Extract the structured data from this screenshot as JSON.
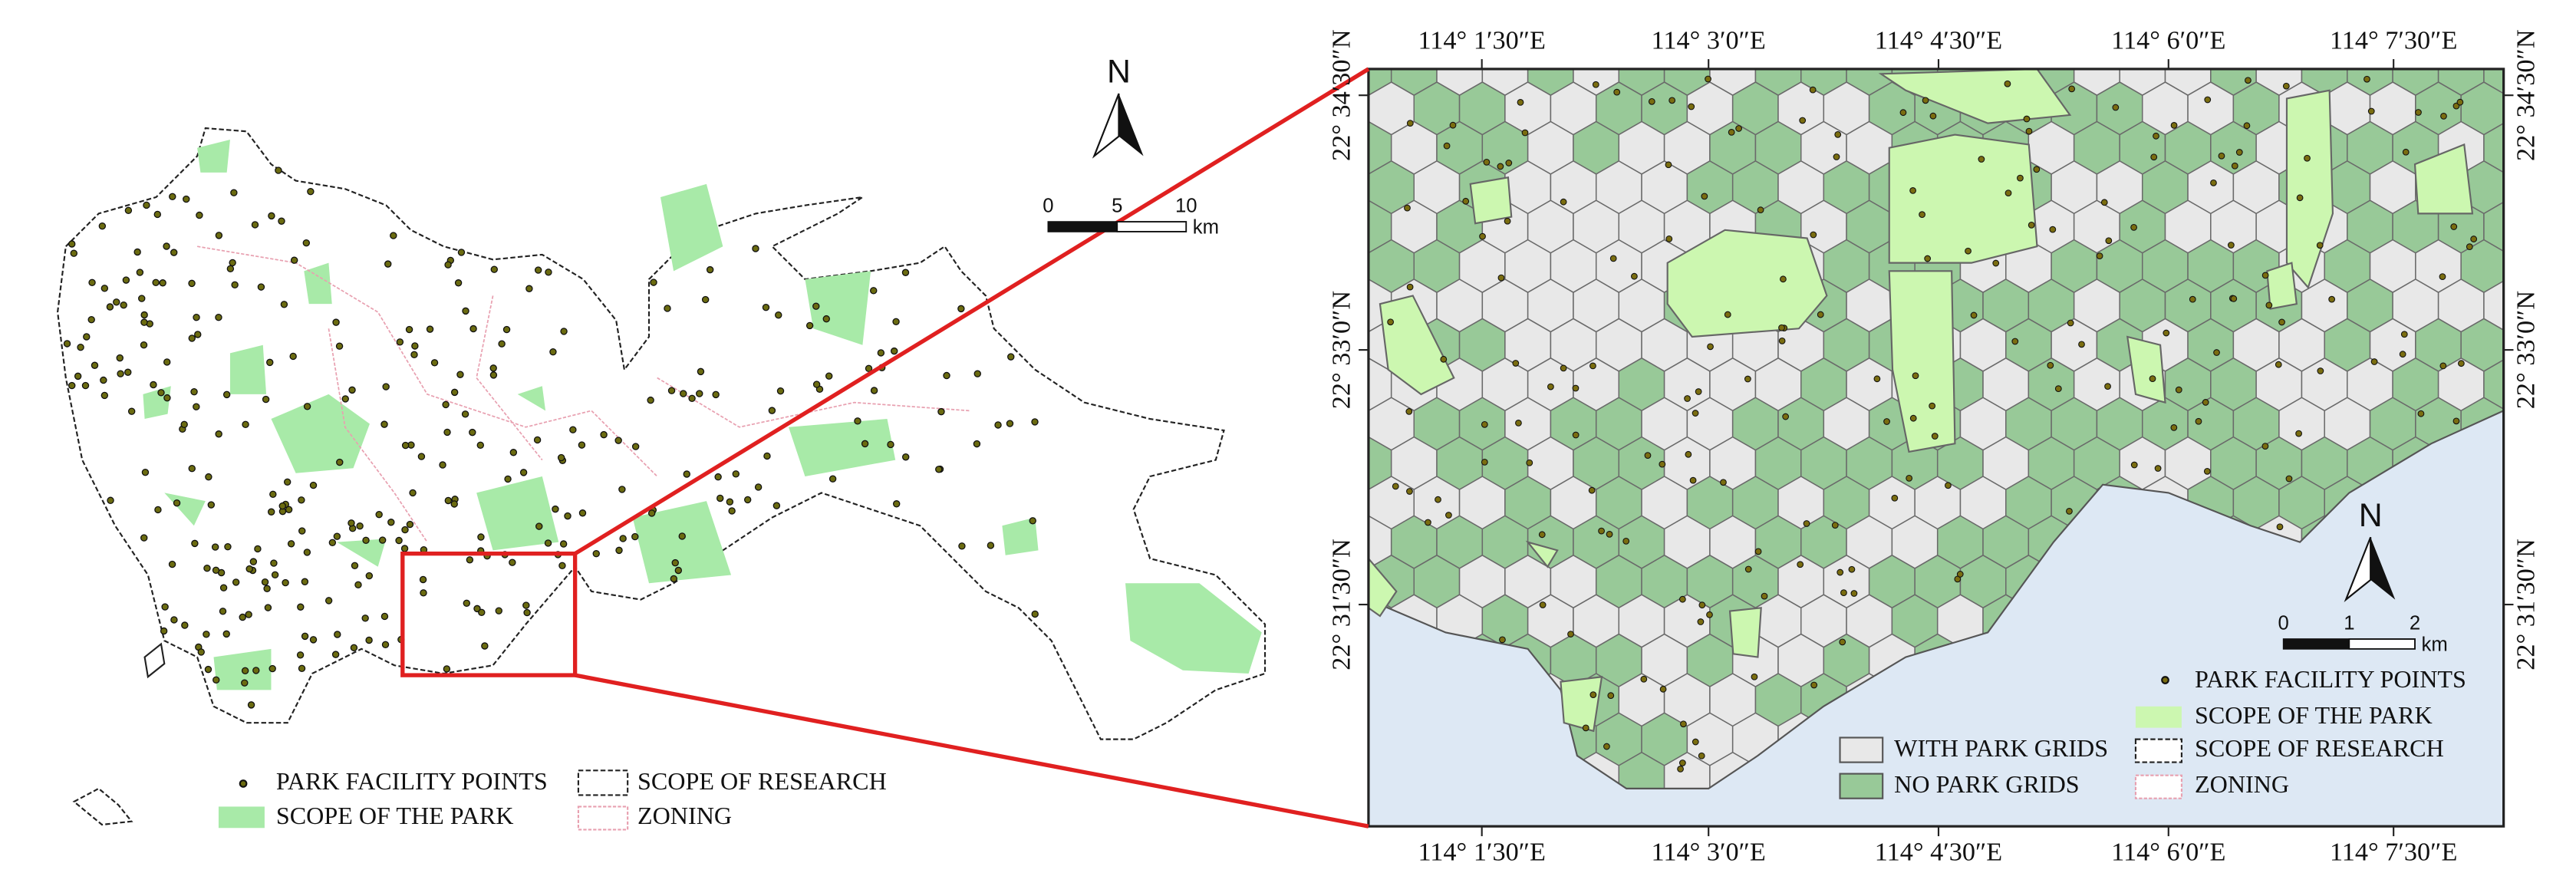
{
  "overview_map": {
    "north": "N",
    "scale_labels": [
      "0",
      "5",
      "10"
    ],
    "scale_unit": "km",
    "legend": [
      "PARK FACILITY POINTS",
      "SCOPE OF RESEARCH",
      "SCOPE OF THE PARK",
      "ZONING"
    ]
  },
  "detail_map": {
    "top_labels": [
      "114° 1′30″E",
      "114° 3′0″E",
      "114° 4′30″E",
      "114° 6′0″E",
      "114° 7′30″E"
    ],
    "bottom_labels": [
      "114° 1′30″E",
      "114° 3′0″E",
      "114° 4′30″E",
      "114° 6′0″E",
      "114° 7′30″E"
    ],
    "left_labels": [
      "22° 34′30″N",
      "22° 33′0″N",
      "22° 31′30″N"
    ],
    "right_labels": [
      "22° 34′30″N",
      "22° 33′0″N",
      "22° 31′30″N"
    ],
    "north": "N",
    "scale_labels": [
      "0",
      "1",
      "2"
    ],
    "scale_unit": "km",
    "legend": [
      "PARK FACILITY POINTS",
      "SCOPE OF THE PARK",
      "SCOPE OF RESEARCH",
      "ZONING",
      "WITH PARK GRIDS",
      "NO PARK GRIDS"
    ]
  }
}
